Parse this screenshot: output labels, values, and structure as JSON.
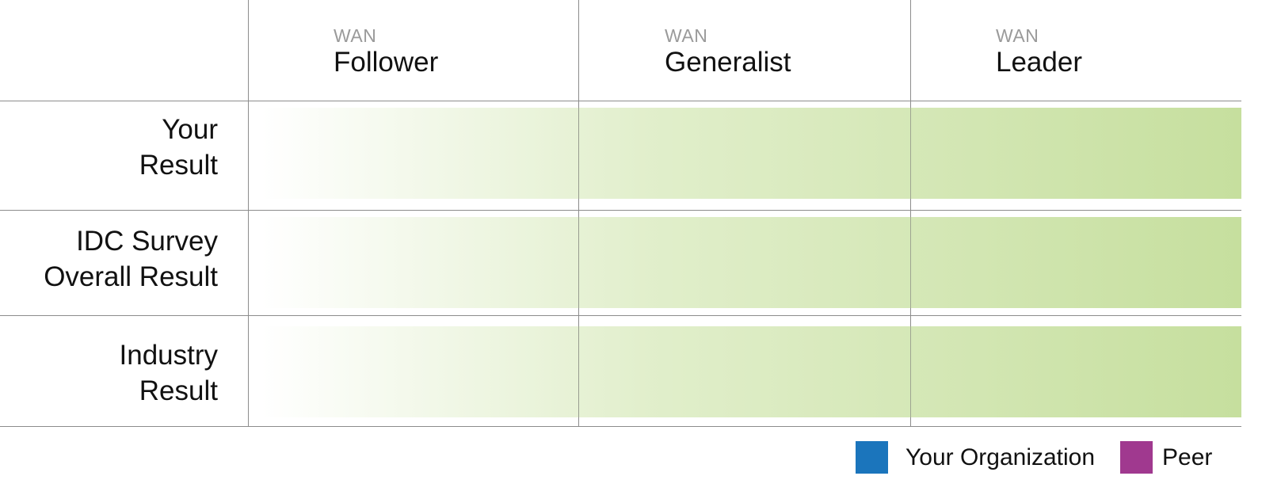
{
  "columns": [
    {
      "kicker": "WAN",
      "title": "Follower"
    },
    {
      "kicker": "WAN",
      "title": "Generalist"
    },
    {
      "kicker": "WAN",
      "title": "Leader"
    }
  ],
  "rows": [
    {
      "line1": "Your",
      "line2": "Result"
    },
    {
      "line1": "IDC Survey",
      "line2": "Overall Result"
    },
    {
      "line1": "Industry",
      "line2": "Result"
    }
  ],
  "legend": [
    {
      "label": "Your Organization",
      "color": "#1b75bc"
    },
    {
      "label": "Peer",
      "color": "#a0398f"
    }
  ],
  "colors": {
    "bar_gradient_end": "#c6df9e",
    "gridline": "#8c8c8c"
  }
}
